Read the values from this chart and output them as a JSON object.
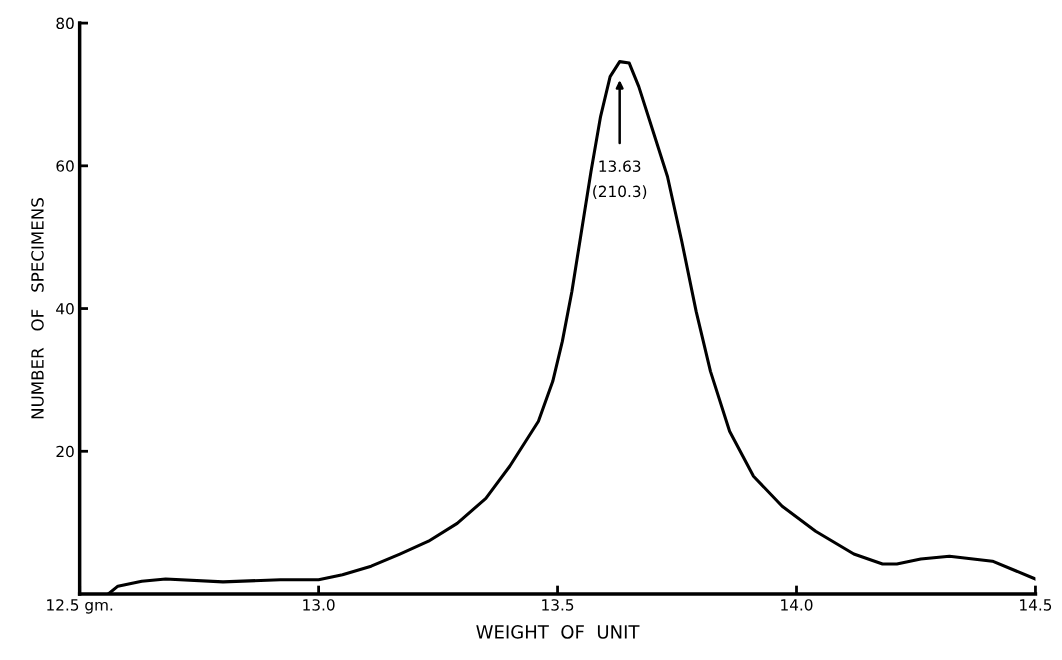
{
  "chart_data": {
    "type": "line",
    "xlabel": "WEIGHT  OF  UNIT",
    "ylabel": "NUMBER   OF   SPECIMENS",
    "xlim": [
      12.5,
      14.5
    ],
    "ylim": [
      0,
      80
    ],
    "xticks": [
      {
        "value": 12.5,
        "label": "12.5 gm."
      },
      {
        "value": 13.0,
        "label": "13.0"
      },
      {
        "value": 13.5,
        "label": "13.5"
      },
      {
        "value": 14.0,
        "label": "14.0"
      },
      {
        "value": 14.5,
        "label": "14.5"
      }
    ],
    "yticks": [
      20,
      40,
      60,
      80
    ],
    "grid": false,
    "marker": "none",
    "line_style": "solid",
    "series": [
      {
        "color": "#000000",
        "x": [
          12.56,
          12.58,
          12.63,
          12.68,
          12.8,
          12.92,
          13.0,
          13.05,
          13.11,
          13.17,
          13.23,
          13.29,
          13.35,
          13.4,
          13.46,
          13.49,
          13.51,
          13.53,
          13.55,
          13.57,
          13.59,
          13.61,
          13.63,
          13.65,
          13.67,
          13.7,
          13.73,
          13.76,
          13.79,
          13.82,
          13.86,
          13.91,
          13.97,
          14.04,
          14.12,
          14.18,
          14.21,
          14.26,
          14.32,
          14.41,
          14.5
        ],
        "values": [
          0,
          1.1,
          1.8,
          2.1,
          1.7,
          2.0,
          2.0,
          2.7,
          3.9,
          5.6,
          7.4,
          9.9,
          13.4,
          17.9,
          24.2,
          29.8,
          35.4,
          42.4,
          50.8,
          59.2,
          66.9,
          72.5,
          74.6,
          74.4,
          71.1,
          64.8,
          58.5,
          49.4,
          39.6,
          31.2,
          22.8,
          16.5,
          12.3,
          8.8,
          5.6,
          4.2,
          4.2,
          4.9,
          5.3,
          4.6,
          2.1
        ]
      }
    ],
    "annotations": [
      "13.63\n(210.3)"
    ]
  }
}
